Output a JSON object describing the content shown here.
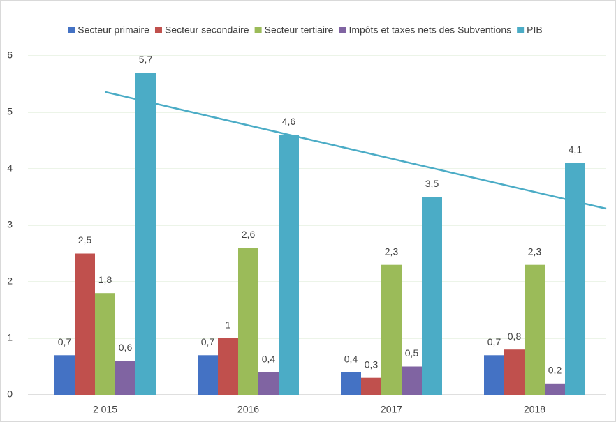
{
  "chart_data": {
    "type": "bar",
    "categories": [
      "2 015",
      "2016",
      "2017",
      "2018"
    ],
    "series": [
      {
        "name": "Secteur primaire",
        "color": "#4472c4",
        "values": [
          0.7,
          0.7,
          0.4,
          0.7
        ],
        "value_labels": [
          "0,7",
          "0,7",
          "0,4",
          "0,7"
        ]
      },
      {
        "name": "Secteur secondaire",
        "color": "#c0504d",
        "values": [
          2.5,
          1,
          0.3,
          0.8
        ],
        "value_labels": [
          "2,5",
          "1",
          "0,3",
          "0,8"
        ]
      },
      {
        "name": "Secteur tertiaire",
        "color": "#9bbb59",
        "values": [
          1.8,
          2.6,
          2.3,
          2.3
        ],
        "value_labels": [
          "1,8",
          "2,6",
          "2,3",
          "2,3"
        ]
      },
      {
        "name": "Impôts et taxes nets des Subventions",
        "color": "#8064a2",
        "values": [
          0.6,
          0.4,
          0.5,
          0.2
        ],
        "value_labels": [
          "0,6",
          "0,4",
          "0,5",
          "0,2"
        ]
      },
      {
        "name": "PIB",
        "color": "#4bacc6",
        "values": [
          5.7,
          4.6,
          3.5,
          4.1
        ],
        "value_labels": [
          "5,7",
          "4,6",
          "3,5",
          "4,1"
        ],
        "trendline": "linear"
      }
    ],
    "ylim": [
      0,
      6
    ],
    "yticks": [
      0,
      1,
      2,
      3,
      4,
      5,
      6
    ],
    "grid": true,
    "legend": "top"
  }
}
